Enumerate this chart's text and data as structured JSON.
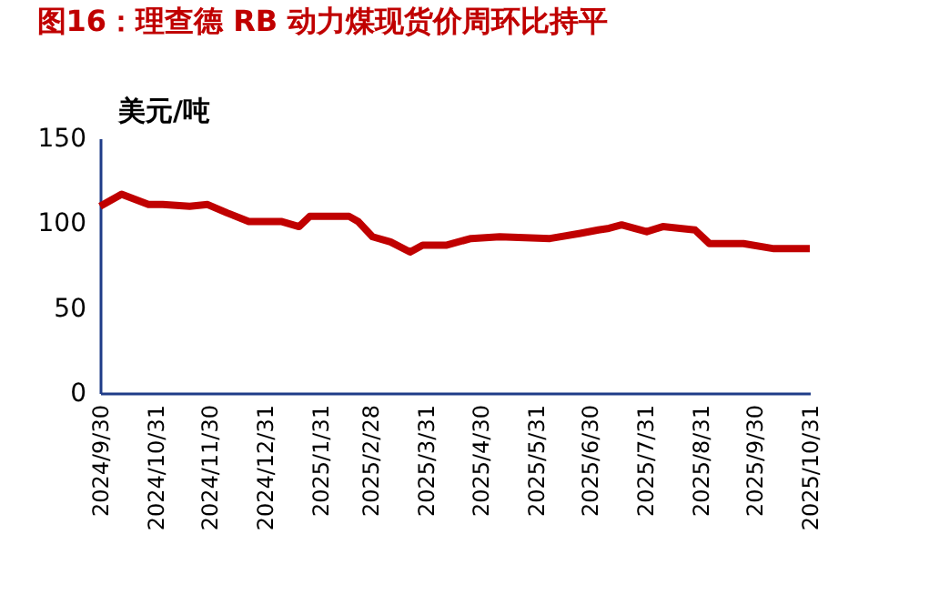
{
  "chart_data": {
    "type": "line",
    "title": "图16：理查德 RB 动力煤现货价周环比持平",
    "ylabel": "美元/吨",
    "x": [
      "2024-09-30",
      "2024-10-12",
      "2024-10-27",
      "2024-11-04",
      "2024-11-19",
      "2024-11-29",
      "2024-12-10",
      "2024-12-22",
      "2025-01-09",
      "2025-01-19",
      "2025-01-25",
      "2025-02-16",
      "2025-02-21",
      "2025-03-01",
      "2025-03-11",
      "2025-03-22",
      "2025-03-29",
      "2025-04-11",
      "2025-04-25",
      "2025-05-11",
      "2025-06-08",
      "2025-06-25",
      "2025-07-05",
      "2025-07-11",
      "2025-07-18",
      "2025-08-01",
      "2025-08-10",
      "2025-08-28",
      "2025-09-05",
      "2025-09-24",
      "2025-10-11",
      "2025-10-31"
    ],
    "series": [
      {
        "color": "#c00000",
        "values": [
          110,
          117,
          111,
          111,
          110,
          111,
          106,
          101,
          101,
          98,
          104,
          104,
          101,
          92,
          89,
          83,
          87,
          87,
          91,
          92,
          91,
          94,
          96,
          97,
          99,
          95,
          98,
          96,
          88,
          88,
          85,
          85
        ]
      }
    ],
    "xlim": [
      "2024-09-30",
      "2025-10-31"
    ],
    "xticks": [
      {
        "value": "2024-09-30",
        "label": "2024/9/30"
      },
      {
        "value": "2024-10-31",
        "label": "2024/10/31"
      },
      {
        "value": "2024-11-30",
        "label": "2024/11/30"
      },
      {
        "value": "2024-12-31",
        "label": "2024/12/31"
      },
      {
        "value": "2025-01-31",
        "label": "2025/1/31"
      },
      {
        "value": "2025-02-28",
        "label": "2025/2/28"
      },
      {
        "value": "2025-03-31",
        "label": "2025/3/31"
      },
      {
        "value": "2025-04-30",
        "label": "2025/4/30"
      },
      {
        "value": "2025-05-31",
        "label": "2025/5/31"
      },
      {
        "value": "2025-06-30",
        "label": "2025/6/30"
      },
      {
        "value": "2025-07-31",
        "label": "2025/7/31"
      },
      {
        "value": "2025-08-31",
        "label": "2025/8/31"
      },
      {
        "value": "2025-09-30",
        "label": "2025/9/30"
      },
      {
        "value": "2025-10-31",
        "label": "2025/10/31"
      }
    ],
    "ylim": [
      0,
      150
    ],
    "yticks": [
      0,
      50,
      100,
      150
    ],
    "grid": false,
    "legend": false,
    "marker": "none",
    "line_style": "solid"
  }
}
